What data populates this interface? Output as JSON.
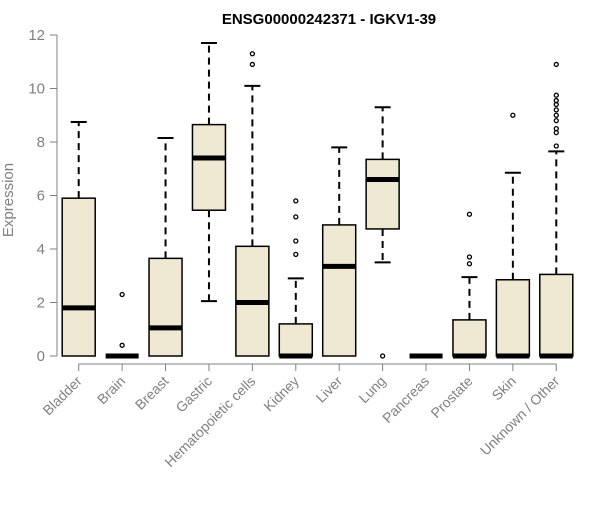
{
  "chart_data": {
    "type": "boxplot",
    "title": "ENSG00000242371 - IGKV1-39",
    "xlabel": "",
    "ylabel": "Expression",
    "ylim": [
      0,
      12
    ],
    "yticks": [
      0,
      2,
      4,
      6,
      8,
      10,
      12
    ],
    "grid": false,
    "legend": "none",
    "box_fill": "#efe8d2",
    "box_stroke": "#000000",
    "axis_color": "#808080",
    "categories": [
      "Bladder",
      "Brain",
      "Breast",
      "Gastric",
      "Hematopoietic cells",
      "Kidney",
      "Liver",
      "Lung",
      "Pancreas",
      "Prostate",
      "Skin",
      "Unknown / Other"
    ],
    "boxes": [
      {
        "q1": 0,
        "median": 1.8,
        "q3": 5.9,
        "whisker_low": 0,
        "whisker_high": 8.75,
        "outliers": []
      },
      {
        "q1": 0,
        "median": 0,
        "q3": 0,
        "whisker_low": 0,
        "whisker_high": 0,
        "outliers": [
          0.4,
          2.3
        ]
      },
      {
        "q1": 0,
        "median": 1.05,
        "q3": 3.65,
        "whisker_low": 0,
        "whisker_high": 8.15,
        "outliers": []
      },
      {
        "q1": 5.45,
        "median": 7.4,
        "q3": 8.65,
        "whisker_low": 2.05,
        "whisker_high": 11.7,
        "outliers": []
      },
      {
        "q1": 0,
        "median": 2.0,
        "q3": 4.1,
        "whisker_low": 0,
        "whisker_high": 10.1,
        "outliers": [
          10.9,
          11.3
        ]
      },
      {
        "q1": 0,
        "median": 0,
        "q3": 1.2,
        "whisker_low": 0,
        "whisker_high": 2.9,
        "outliers": [
          3.8,
          4.3,
          5.2,
          5.8
        ]
      },
      {
        "q1": 0,
        "median": 3.35,
        "q3": 4.9,
        "whisker_low": 0,
        "whisker_high": 7.8,
        "outliers": []
      },
      {
        "q1": 4.75,
        "median": 6.6,
        "q3": 7.35,
        "whisker_low": 3.5,
        "whisker_high": 9.3,
        "outliers": [
          0
        ]
      },
      {
        "q1": 0,
        "median": 0,
        "q3": 0,
        "whisker_low": 0,
        "whisker_high": 0,
        "outliers": []
      },
      {
        "q1": 0,
        "median": 0,
        "q3": 1.35,
        "whisker_low": 0,
        "whisker_high": 2.95,
        "outliers": [
          3.45,
          3.7,
          5.3
        ]
      },
      {
        "q1": 0,
        "median": 0,
        "q3": 2.85,
        "whisker_low": 0,
        "whisker_high": 6.85,
        "outliers": [
          9.0
        ]
      },
      {
        "q1": 0,
        "median": 0,
        "q3": 3.05,
        "whisker_low": 0,
        "whisker_high": 7.65,
        "outliers": [
          7.85,
          8.35,
          8.5,
          8.8,
          9.0,
          9.2,
          9.4,
          9.55,
          9.75,
          10.9
        ]
      }
    ]
  }
}
